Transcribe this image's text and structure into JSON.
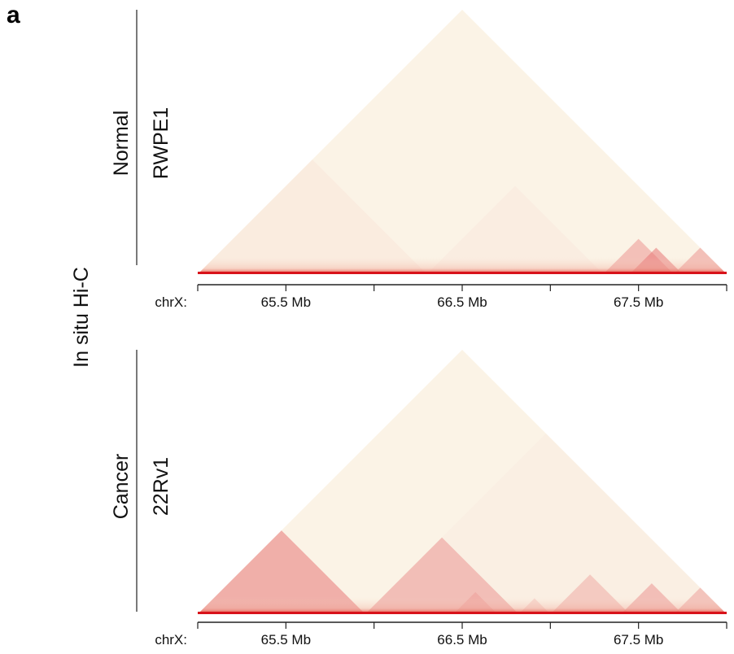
{
  "figure": {
    "panel_letter": "a",
    "method_label": "In situ Hi-C",
    "colors": {
      "normal_sample": "#2e9a3a",
      "cancer_sample": "#e4641e",
      "heatmap_low": "#fbf3e6",
      "heatmap_high": "#d8121a",
      "axis": "#222222"
    }
  },
  "chart_data": [
    {
      "type": "heatmap",
      "subtype": "Hi-C contact map (triangular, diagonal at bottom)",
      "condition": "Normal",
      "sample": "RWPE1",
      "xlabel": "chrX:",
      "x_unit": "Mb",
      "xlim": [
        65.0,
        68.0
      ],
      "ticks": [
        65.5,
        66.0,
        66.5,
        67.0,
        67.5
      ],
      "tick_labels": [
        "65.5 Mb",
        "66.5 Mb",
        "67.5 Mb"
      ],
      "tick_label_positions": [
        65.5,
        66.5,
        67.5
      ],
      "domains": [
        {
          "start": 65.0,
          "end": 66.3,
          "intensity": 0.1
        },
        {
          "start": 66.3,
          "end": 67.3,
          "intensity": 0.08
        },
        {
          "start": 67.3,
          "end": 67.7,
          "intensity": 0.45
        },
        {
          "start": 67.45,
          "end": 67.75,
          "intensity": 0.55
        },
        {
          "start": 67.7,
          "end": 68.0,
          "intensity": 0.45
        }
      ],
      "diagonal_intensity": 0.95
    },
    {
      "type": "heatmap",
      "subtype": "Hi-C contact map (triangular, diagonal at bottom)",
      "condition": "Cancer",
      "sample": "22Rv1",
      "xlabel": "chrX:",
      "x_unit": "Mb",
      "xlim": [
        65.0,
        68.0
      ],
      "ticks": [
        65.5,
        66.0,
        66.5,
        67.0,
        67.5
      ],
      "tick_labels": [
        "65.5 Mb",
        "66.5 Mb",
        "67.5 Mb"
      ],
      "tick_label_positions": [
        65.5,
        66.5,
        67.5
      ],
      "domains": [
        {
          "start": 65.0,
          "end": 65.95,
          "intensity": 0.55
        },
        {
          "start": 65.95,
          "end": 66.82,
          "intensity": 0.55
        },
        {
          "start": 66.45,
          "end": 66.7,
          "intensity": 0.5
        },
        {
          "start": 66.82,
          "end": 67.0,
          "intensity": 0.35
        },
        {
          "start": 67.0,
          "end": 67.45,
          "intensity": 0.45
        },
        {
          "start": 67.4,
          "end": 67.75,
          "intensity": 0.55
        },
        {
          "start": 67.7,
          "end": 68.0,
          "intensity": 0.5
        },
        {
          "start": 65.95,
          "end": 68.0,
          "intensity": 0.06
        }
      ],
      "diagonal_intensity": 0.95
    }
  ]
}
